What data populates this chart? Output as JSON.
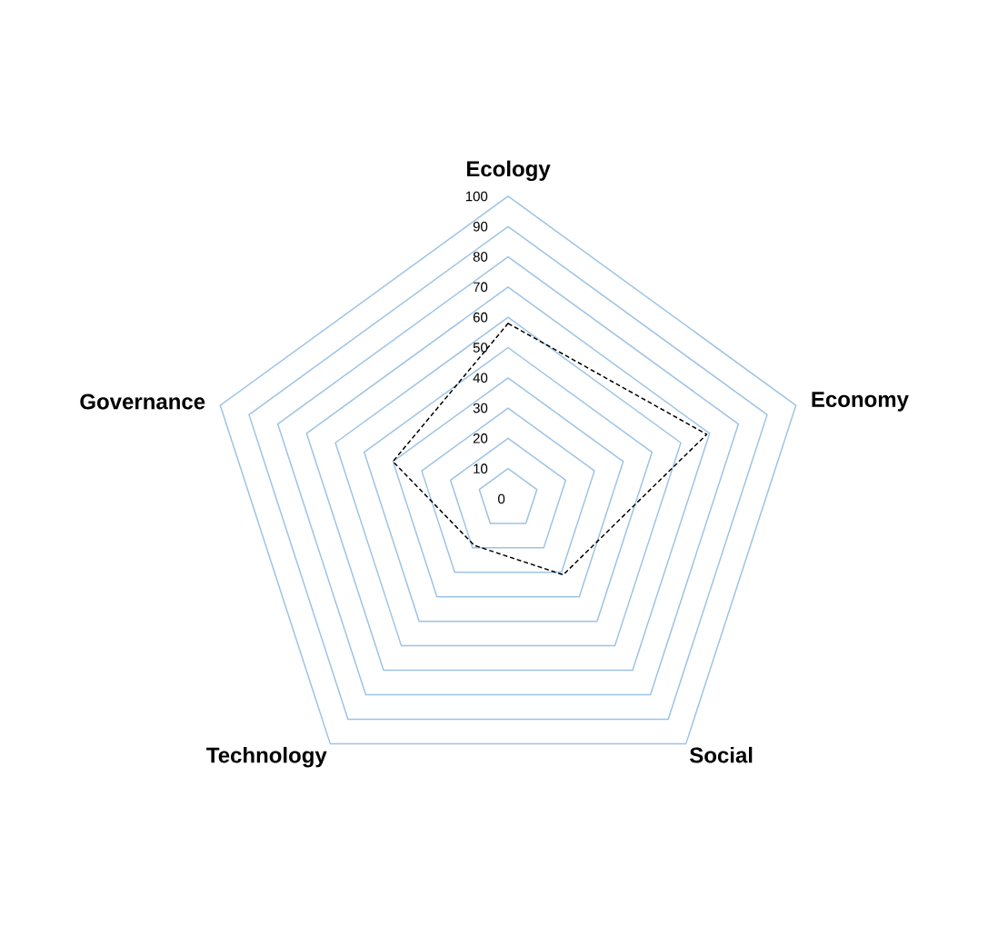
{
  "chart_data": {
    "type": "radar",
    "categories": [
      "Ecology",
      "Economy",
      "Social",
      "Technology",
      "Governance"
    ],
    "series": [
      {
        "color": "#000000",
        "values": [
          58,
          69,
          31,
          19,
          40
        ]
      }
    ],
    "ylim": [
      0,
      100
    ],
    "yticks": [
      0,
      10,
      20,
      30,
      40,
      50,
      60,
      70,
      80,
      90,
      100
    ],
    "grid": true,
    "line_style": "dashed"
  }
}
